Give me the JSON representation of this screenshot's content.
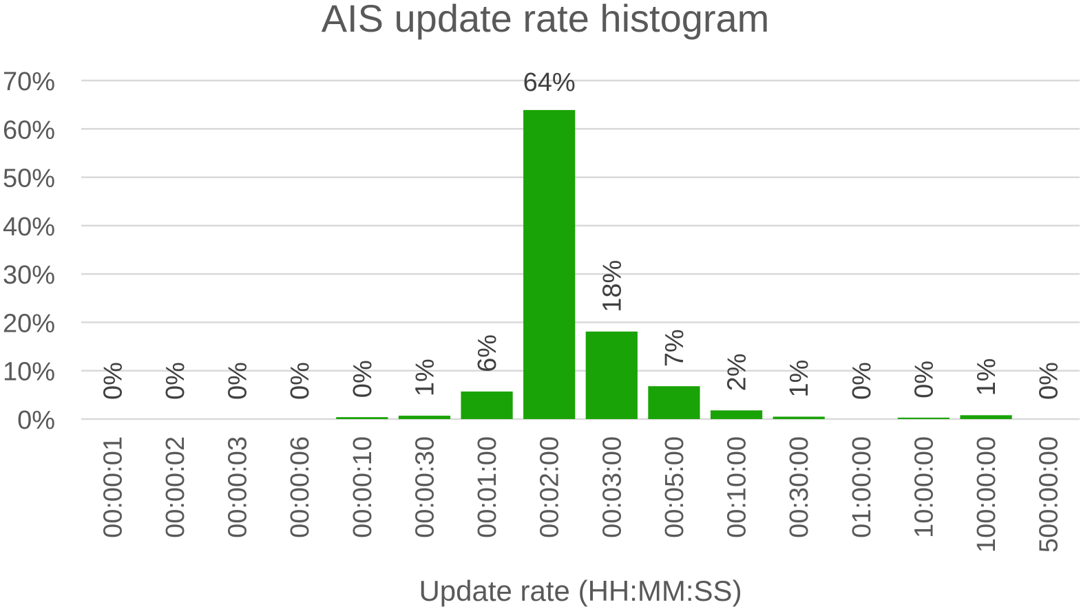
{
  "chart_data": {
    "type": "bar",
    "title": "AIS update rate histogram",
    "xlabel": "Update rate (HH:MM:SS)",
    "ylabel": "",
    "ylim": [
      0,
      70
    ],
    "yticks": [
      "0%",
      "10%",
      "20%",
      "30%",
      "40%",
      "50%",
      "60%",
      "70%"
    ],
    "grid": true,
    "legend": "none",
    "bar_color": "#1aa306",
    "categories": [
      "00:00:01",
      "00:00:02",
      "00:00:03",
      "00:00:06",
      "00:00:10",
      "00:00:30",
      "00:01:00",
      "00:02:00",
      "00:03:00",
      "00:05:00",
      "00:10:00",
      "00:30:00",
      "01:00:00",
      "10:00:00",
      "100:00:00",
      "500:00:00"
    ],
    "values": [
      0,
      0,
      0,
      0,
      0.4,
      0.7,
      5.7,
      63.9,
      18.1,
      6.8,
      1.8,
      0.5,
      0,
      0.3,
      0.8,
      0
    ],
    "data_labels": [
      "0%",
      "0%",
      "0%",
      "0%",
      "0%",
      "1%",
      "6%",
      "64%",
      "18%",
      "7%",
      "2%",
      "1%",
      "0%",
      "0%",
      "1%",
      "0%"
    ]
  }
}
